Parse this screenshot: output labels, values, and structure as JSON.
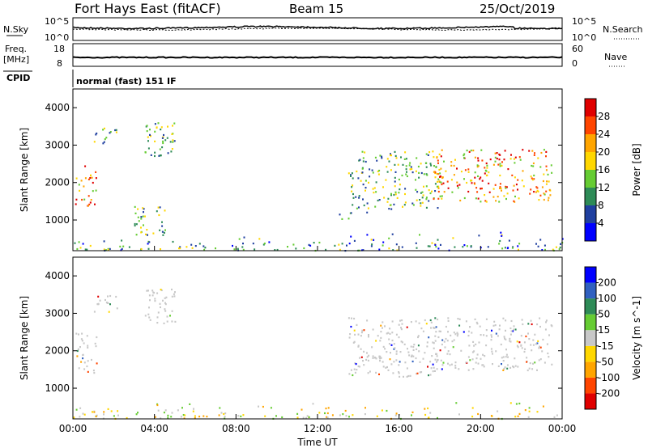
{
  "header": {
    "station": "Fort Hays East (fitACF)",
    "beam": "Beam 15",
    "date": "25/Oct/2019"
  },
  "noise_panel": {
    "left_label": "N.Sky",
    "right_label": "N.Search",
    "left_ticks": [
      "10^5",
      "10^0"
    ],
    "right_ticks": [
      "10^5",
      "10^0"
    ]
  },
  "freq_panel": {
    "left_label_1": "Freq.",
    "left_label_2": "[MHz]",
    "right_label": "Nave",
    "left_ticks": [
      "18",
      "8"
    ],
    "right_ticks": [
      "60",
      "0"
    ]
  },
  "cpid_panel": {
    "label": "CPID",
    "text": "normal (fast) 151 IF"
  },
  "colors": {
    "power": [
      "#0000ff",
      "#2040a0",
      "#2e8b57",
      "#66cc33",
      "#ffd700",
      "#ffa500",
      "#ff4500",
      "#e00000"
    ],
    "velocity": [
      "#0000ff",
      "#3060c0",
      "#2e8b57",
      "#66cc33",
      "#c8c8c8",
      "#ffd700",
      "#ffa500",
      "#ff4500",
      "#e00000"
    ]
  },
  "chart_data": [
    {
      "type": "heatmap",
      "title": "",
      "xlabel": "Time UT",
      "ylabel": "Slant Range [km]",
      "xlim": [
        "00:00",
        "24:00"
      ],
      "ylim": [
        180,
        4500
      ],
      "x_ticks": [
        "00:00",
        "04:00",
        "08:00",
        "12:00",
        "16:00",
        "20:00",
        "00:00"
      ],
      "y_ticks": [
        "1000",
        "2000",
        "3000",
        "4000"
      ],
      "colorbar": {
        "label": "Power [dB]",
        "ticks": [
          "4",
          "8",
          "12",
          "16",
          "20",
          "24",
          "28"
        ],
        "range": [
          0,
          30
        ]
      },
      "regions": [
        {
          "t_start": 0.1,
          "t_end": 1.2,
          "r_start": 1400,
          "r_end": 2500,
          "level": "high"
        },
        {
          "t_start": 1.0,
          "t_end": 2.2,
          "r_start": 3000,
          "r_end": 3500,
          "level": "mid"
        },
        {
          "t_start": 3.5,
          "t_end": 5.0,
          "r_start": 2700,
          "r_end": 3700,
          "level": "mid"
        },
        {
          "t_start": 3.0,
          "t_end": 4.5,
          "r_start": 600,
          "r_end": 1400,
          "level": "mid"
        },
        {
          "t_start": 13.0,
          "t_end": 14.5,
          "r_start": 1000,
          "r_end": 1300,
          "level": "mid"
        },
        {
          "t_start": 13.5,
          "t_end": 18.0,
          "r_start": 1300,
          "r_end": 2900,
          "level": "mid"
        },
        {
          "t_start": 17.5,
          "t_end": 23.5,
          "r_start": 1500,
          "r_end": 2900,
          "level": "high"
        },
        {
          "t_start": 0.0,
          "t_end": 24.0,
          "r_start": 180,
          "r_end": 700,
          "level": "low"
        }
      ]
    },
    {
      "type": "heatmap",
      "title": "",
      "xlabel": "Time UT",
      "ylabel": "Slant Range [km]",
      "xlim": [
        "00:00",
        "24:00"
      ],
      "ylim": [
        180,
        4500
      ],
      "x_ticks": [
        "00:00",
        "04:00",
        "08:00",
        "12:00",
        "16:00",
        "20:00",
        "00:00"
      ],
      "y_ticks": [
        "1000",
        "2000",
        "3000",
        "4000"
      ],
      "colorbar": {
        "label": "Velocity [m s^-1]",
        "ticks": [
          "200",
          "100",
          "50",
          "15",
          "-15",
          "-50",
          "-100",
          "-200"
        ],
        "range": [
          -250,
          250
        ]
      },
      "regions": [
        {
          "t_start": 0.1,
          "t_end": 1.2,
          "r_start": 1400,
          "r_end": 2500,
          "level": "ground"
        },
        {
          "t_start": 1.0,
          "t_end": 2.2,
          "r_start": 3000,
          "r_end": 3500,
          "level": "ground"
        },
        {
          "t_start": 3.5,
          "t_end": 5.0,
          "r_start": 2700,
          "r_end": 3700,
          "level": "ground"
        },
        {
          "t_start": 13.5,
          "t_end": 18.0,
          "r_start": 1300,
          "r_end": 2900,
          "level": "ground"
        },
        {
          "t_start": 17.5,
          "t_end": 23.5,
          "r_start": 1500,
          "r_end": 2900,
          "level": "ground"
        },
        {
          "t_start": 0.0,
          "t_end": 24.0,
          "r_start": 180,
          "r_end": 700,
          "level": "low-neg"
        }
      ]
    }
  ]
}
